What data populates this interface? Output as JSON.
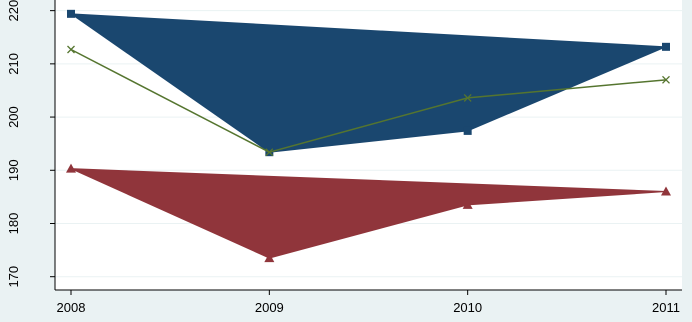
{
  "chart_data": {
    "type": "line",
    "categories": [
      "2008",
      "2009",
      "2010",
      "2011"
    ],
    "series": [
      {
        "color": "#1a476f",
        "filled": true,
        "marker": "square",
        "values": [
          219.4,
          193.4,
          197.4,
          213.2
        ]
      },
      {
        "color": "#90353b",
        "filled": true,
        "marker": "triangle",
        "values": [
          190.3,
          173.5,
          183.5,
          186
        ]
      },
      {
        "color": "#55752f",
        "filled": false,
        "marker": "x",
        "values": [
          212.7,
          193.4,
          203.6,
          207
        ]
      }
    ],
    "ylim": [
      167.5,
      222
    ],
    "yticks": [
      170,
      180,
      190,
      200,
      210,
      220
    ],
    "grid": true
  }
}
